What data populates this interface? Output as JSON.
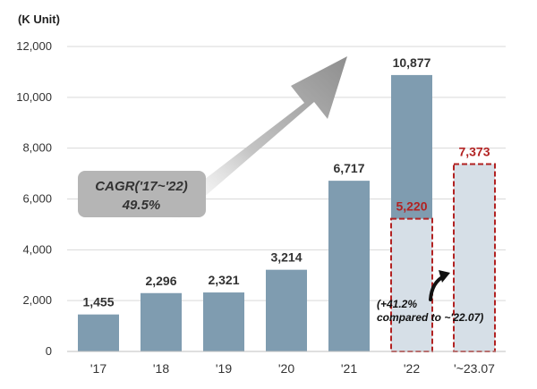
{
  "chart_data": {
    "type": "bar",
    "unit_label": "(K Unit)",
    "categories": [
      "'17",
      "'18",
      "'19",
      "'20",
      "'21",
      "'22",
      "'~23.07"
    ],
    "series": [
      {
        "values": [
          1455,
          2296,
          2321,
          3214,
          6717,
          10877,
          null
        ]
      }
    ],
    "value_labels": [
      "1,455",
      "2,296",
      "2,321",
      "3,214",
      "6,717",
      "10,877",
      ""
    ],
    "partial_period": {
      "values": [
        null,
        null,
        null,
        null,
        null,
        5220,
        7373
      ],
      "labels": [
        "",
        "",
        "",
        "",
        "",
        "5,220",
        "7,373"
      ],
      "style": "dashed-outline"
    },
    "yticks": [
      "0",
      "2,000",
      "4,000",
      "6,000",
      "8,000",
      "10,000",
      "12,000"
    ],
    "ylim": [
      0,
      12000
    ],
    "grid": true,
    "annotations": {
      "cagr_line1": "CAGR('17~'22)",
      "cagr_line2": "49.5%",
      "growth_line1": "(+41.2%",
      "growth_line2": "compared to ~'22.07)"
    },
    "colors": {
      "bar": "#7f9cb0",
      "partial_fill": "#d6dfe7",
      "partial_border": "#b22222",
      "partial_label": "#b22222",
      "grid": "#d9d9d9",
      "arrow": "#9a9a9a",
      "cagr_box": "#b5b5b5"
    }
  }
}
